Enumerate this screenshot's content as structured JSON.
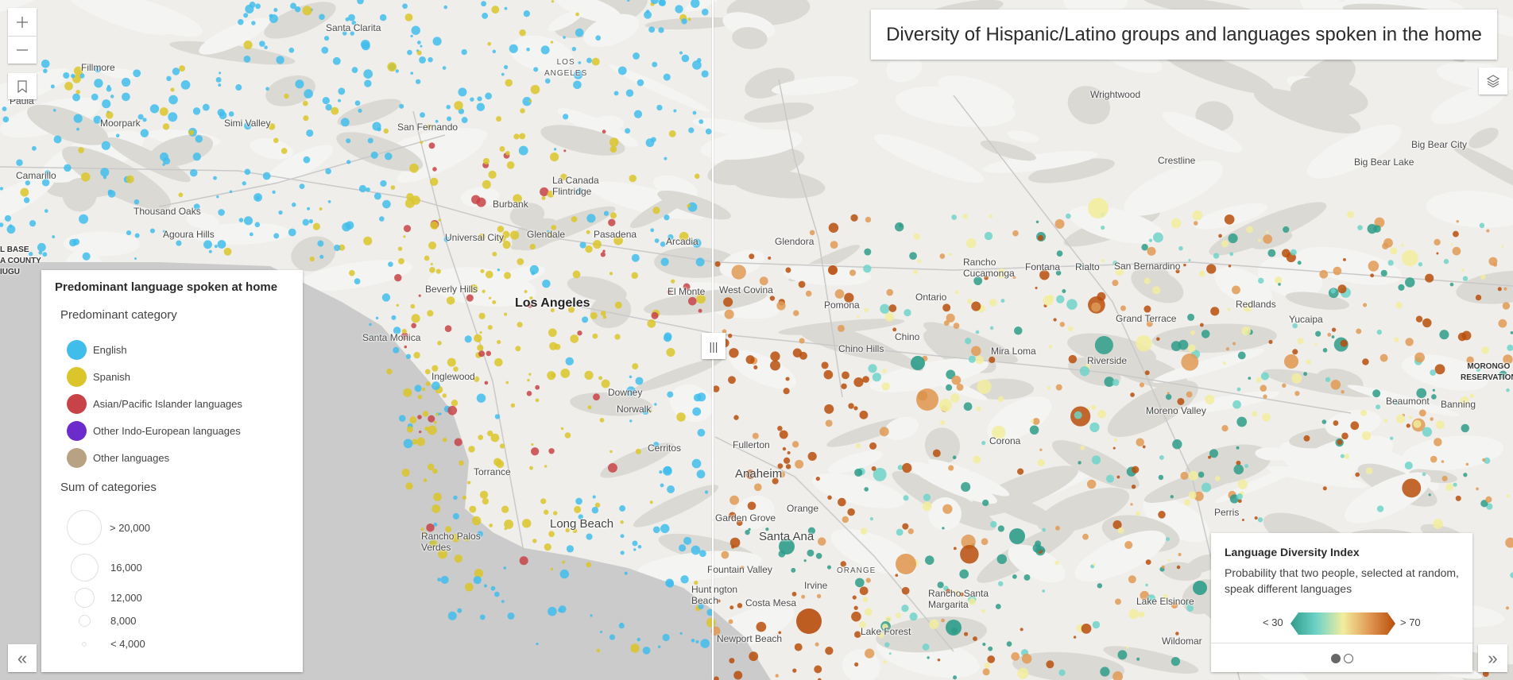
{
  "title": "Diversity of Hispanic/Latino groups and languages spoken in the home",
  "controls": {
    "zoom_in_icon": "plus-icon",
    "zoom_out_icon": "minus-icon",
    "bookmark_icon": "bookmark-icon",
    "layers_icon": "layers-icon",
    "collapse_icon": "double-chevron-left-icon",
    "expand_icon": "double-chevron-right-icon",
    "swipe_handle_icon": "vertical-bars-icon"
  },
  "legend": {
    "title": "Predominant language spoken at home",
    "category_title": "Predominant category",
    "categories": [
      {
        "label": "English",
        "color": "#41bdec"
      },
      {
        "label": "Spanish",
        "color": "#dac52a"
      },
      {
        "label": "Asian/Pacific Islander languages",
        "color": "#c84348"
      },
      {
        "label": "Other Indo-European languages",
        "color": "#6b2ccb"
      },
      {
        "label": "Other languages",
        "color": "#b9a183"
      }
    ],
    "size_title": "Sum of categories",
    "sizes": [
      "> 20,000",
      "16,000",
      "12,000",
      "8,000",
      "< 4,000"
    ]
  },
  "diversity_legend": {
    "title": "Language Diversity Index",
    "description": "Probability that two people, selected at random, speak different languages",
    "min_label": "< 30",
    "max_label": "> 70",
    "ramp_colors": [
      "#2e9c8a",
      "#6fd3c9",
      "#f2ed9e",
      "#e09a55",
      "#b84d0c"
    ],
    "page": 1,
    "pages": 2
  },
  "places": {
    "santa_clarita": "Santa Clarita",
    "fillmore": "Fillmore",
    "paula": "Paula",
    "los_angeles_county": "LOS\nANGELES",
    "wrightwood": "Wrightwood",
    "moorpark": "Moorpark",
    "simi_valley": "Simi Valley",
    "san_fernando": "San Fernando",
    "camarillo": "Camarillo",
    "crestline": "Crestline",
    "big_bear_city": "Big Bear City",
    "big_bear_lake": "Big Bear Lake",
    "la_canada": "La Canada\nFlintridge",
    "burbank": "Burbank",
    "thousand_oaks": "Thousand Oaks",
    "agoura_hills": "Agoura Hills",
    "universal_city": "Universal City",
    "glendale": "Glendale",
    "pasadena": "Pasadena",
    "arcadia": "Arcadia",
    "glendora": "Glendora",
    "rancho_cucamonga": "Rancho\nCucamonga",
    "fontana": "Fontana",
    "rialto": "Rialto",
    "san_bernardino": "San Bernardino",
    "el_monte": "El Monte",
    "west_covina": "West Covina",
    "beverly_hills": "Beverly Hills",
    "los_angeles": "Los Angeles",
    "pomona": "Pomona",
    "ontario": "Ontario",
    "grand_terrace": "Grand Terrace",
    "redlands": "Redlands",
    "yucaipa": "Yucaipa",
    "santa_monica": "Santa Monica",
    "chino_hills": "Chino Hills",
    "chino": "Chino",
    "mira_loma": "Mira Loma",
    "riverside": "Riverside",
    "morongo": "MORONGO\nRESERVATION",
    "inglewood": "Inglewood",
    "downey": "Downey",
    "norwalk": "Norwalk",
    "beaumont": "Beaumont",
    "banning": "Banning",
    "moreno_valley": "Moreno Valley",
    "corona": "Corona",
    "fullerton": "Fullerton",
    "cerritos": "Cerritos",
    "anaheim": "Anaheim",
    "torrance": "Torrance",
    "orange": "Orange",
    "garden_grove": "Garden Grove",
    "long_beach": "Long Beach",
    "santa_ana": "Santa Ana",
    "rancho_palos_verdes": "Rancho Palos\nVerdes",
    "perris": "Perris",
    "irvine": "Irvine",
    "orange_county": "ORANGE",
    "fountain_valley": "Fountain Valley",
    "huntington_beach": "Huntington\nBeach",
    "costa_mesa": "Costa Mesa",
    "lake_elsinore": "Lake Elsinore",
    "rancho_santa_margarita": "Rancho Santa\nMargarita",
    "lake_forest": "Lake Forest",
    "newport_beach": "Newport Beach",
    "wildomar": "Wildomar",
    "base": "L BASE\nA COUNTY\nIUGU"
  }
}
